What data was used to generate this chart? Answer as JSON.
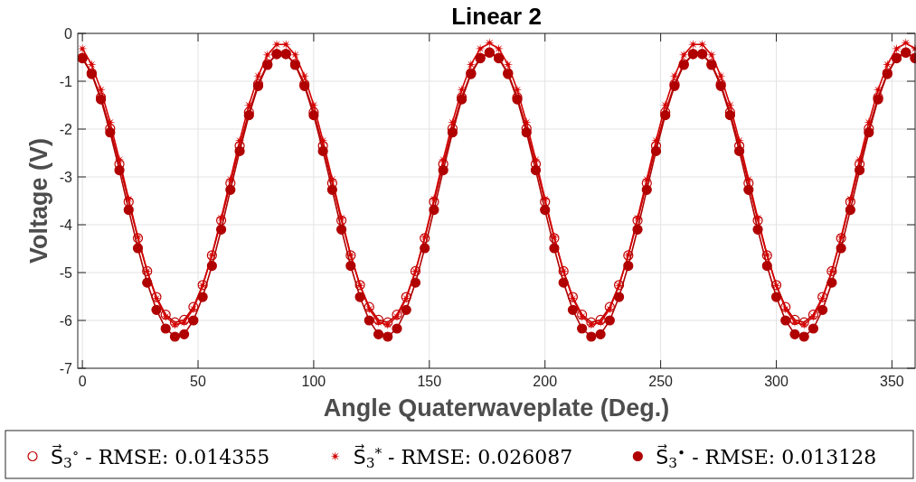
{
  "chart_data": {
    "type": "line",
    "title": "Linear 2",
    "xlabel": "Angle Quaterwaveplate (Deg.)",
    "ylabel": "Voltage (V)",
    "x": [
      0,
      4,
      8,
      12,
      16,
      20,
      24,
      28,
      32,
      36,
      40,
      44,
      48,
      52,
      56,
      60,
      64,
      68,
      72,
      76,
      80,
      84,
      88,
      92,
      96,
      100,
      104,
      108,
      112,
      116,
      120,
      124,
      128,
      132,
      136,
      140,
      144,
      148,
      152,
      156,
      160,
      164,
      168,
      172,
      176,
      180,
      184,
      188,
      192,
      196,
      200,
      204,
      208,
      212,
      216,
      220,
      224,
      228,
      232,
      236,
      240,
      244,
      248,
      252,
      256,
      260,
      264,
      268,
      272,
      276,
      280,
      284,
      288,
      292,
      296,
      300,
      304,
      308,
      312,
      316,
      320,
      324,
      328,
      332,
      336,
      340,
      344,
      348,
      352,
      356,
      360
    ],
    "xlim": [
      -2,
      360
    ],
    "xticks": [
      0,
      50,
      100,
      150,
      200,
      250,
      300,
      350
    ],
    "ylim": [
      -7,
      0
    ],
    "yticks": [
      -7,
      -6,
      -5,
      -4,
      -3,
      -2,
      -1,
      0
    ],
    "grid": true,
    "legend": "bottom",
    "line_style": "solid",
    "series": [
      {
        "name": "S⃗$_{3}$$^{∘}$ - RMSE: 0.014355",
        "color": "#c00000",
        "marker": "circle",
        "values": [
          -0.51,
          -0.83,
          -1.34,
          -1.99,
          -2.73,
          -3.52,
          -4.28,
          -4.97,
          -5.51,
          -5.88,
          -6.04,
          -5.99,
          -5.72,
          -5.26,
          -4.64,
          -3.91,
          -3.13,
          -2.35,
          -1.65,
          -1.06,
          -0.64,
          -0.43,
          -0.43,
          -0.64,
          -1.06,
          -1.65,
          -2.35,
          -3.13,
          -3.91,
          -4.64,
          -5.26,
          -5.72,
          -5.99,
          -6.04,
          -5.88,
          -5.51,
          -4.97,
          -4.28,
          -3.52,
          -2.73,
          -1.99,
          -1.34,
          -0.83,
          -0.51,
          -0.4,
          -0.51,
          -0.83,
          -1.34,
          -1.99,
          -2.73,
          -3.52,
          -4.28,
          -4.97,
          -5.51,
          -5.88,
          -6.04,
          -5.99,
          -5.72,
          -5.26,
          -4.64,
          -3.91,
          -3.13,
          -2.35,
          -1.65,
          -1.06,
          -0.64,
          -0.43,
          -0.43,
          -0.64,
          -1.06,
          -1.65,
          -2.35,
          -3.13,
          -3.91,
          -4.64,
          -5.26,
          -5.72,
          -5.99,
          -6.04,
          -5.88,
          -5.51,
          -4.97,
          -4.28,
          -3.52,
          -2.73,
          -1.99,
          -1.34,
          -0.83,
          -0.51,
          -0.4,
          -0.51
        ]
      },
      {
        "name": "S⃗$_{3}$$^{*}$ - RMSE: 0.026087",
        "color": "#d40000",
        "marker": "star",
        "values": [
          -0.32,
          -0.65,
          -1.18,
          -1.86,
          -2.64,
          -3.46,
          -4.26,
          -4.97,
          -5.54,
          -5.92,
          -6.09,
          -6.04,
          -5.76,
          -5.27,
          -4.63,
          -3.86,
          -3.05,
          -2.24,
          -1.5,
          -0.89,
          -0.45,
          -0.23,
          -0.23,
          -0.45,
          -0.89,
          -1.5,
          -2.24,
          -3.05,
          -3.86,
          -4.63,
          -5.27,
          -5.76,
          -6.04,
          -6.09,
          -5.92,
          -5.54,
          -4.97,
          -4.26,
          -3.46,
          -2.64,
          -1.86,
          -1.18,
          -0.65,
          -0.32,
          -0.2,
          -0.32,
          -0.65,
          -1.18,
          -1.86,
          -2.64,
          -3.46,
          -4.26,
          -4.97,
          -5.54,
          -5.92,
          -6.09,
          -6.04,
          -5.76,
          -5.27,
          -4.63,
          -3.86,
          -3.05,
          -2.24,
          -1.5,
          -0.89,
          -0.45,
          -0.23,
          -0.23,
          -0.45,
          -0.89,
          -1.5,
          -2.24,
          -3.05,
          -3.86,
          -4.63,
          -5.27,
          -5.76,
          -6.04,
          -6.09,
          -5.92,
          -5.54,
          -4.97,
          -4.26,
          -3.46,
          -2.64,
          -1.86,
          -1.18,
          -0.65,
          -0.32,
          -0.2,
          -0.32
        ]
      },
      {
        "name": "S⃗$_{3}$$^{•}$ - RMSE: 0.013128",
        "color": "#b00000",
        "marker": "circle",
        "values": [
          -0.52,
          -0.85,
          -1.38,
          -2.07,
          -2.86,
          -3.69,
          -4.49,
          -5.21,
          -5.78,
          -6.17,
          -6.34,
          -6.29,
          -6.0,
          -5.51,
          -4.86,
          -4.1,
          -3.27,
          -2.46,
          -1.71,
          -1.1,
          -0.66,
          -0.43,
          -0.43,
          -0.66,
          -1.1,
          -1.71,
          -2.46,
          -3.27,
          -4.1,
          -4.86,
          -5.51,
          -6.0,
          -6.29,
          -6.34,
          -6.17,
          -5.78,
          -5.21,
          -4.49,
          -3.69,
          -2.86,
          -2.07,
          -1.38,
          -0.85,
          -0.52,
          -0.4,
          -0.52,
          -0.85,
          -1.38,
          -2.07,
          -2.86,
          -3.69,
          -4.49,
          -5.21,
          -5.78,
          -6.17,
          -6.34,
          -6.29,
          -6.0,
          -5.51,
          -4.86,
          -4.1,
          -3.27,
          -2.46,
          -1.71,
          -1.1,
          -0.66,
          -0.43,
          -0.43,
          -0.66,
          -1.1,
          -1.71,
          -2.46,
          -3.27,
          -4.1,
          -4.86,
          -5.51,
          -6.0,
          -6.29,
          -6.34,
          -6.17,
          -5.78,
          -5.21,
          -4.49,
          -3.69,
          -2.86,
          -2.07,
          -1.38,
          -0.85,
          -0.52,
          -0.4,
          -0.52
        ]
      }
    ]
  }
}
